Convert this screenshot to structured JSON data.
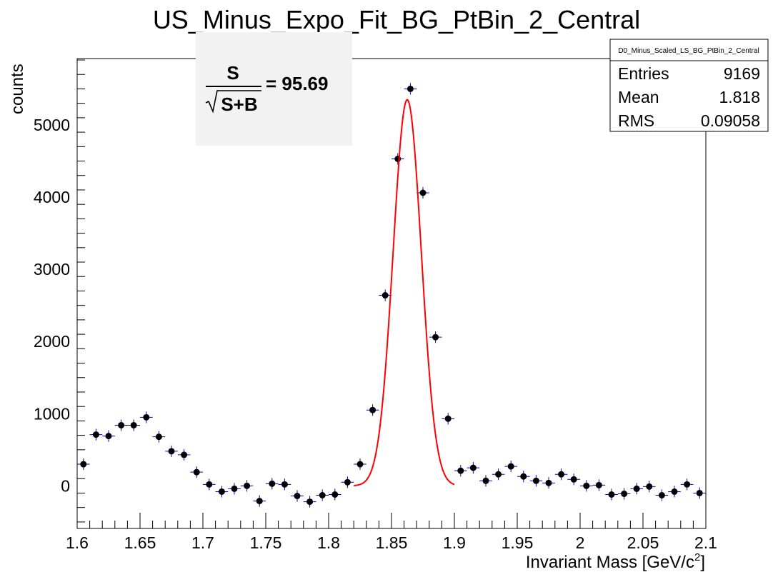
{
  "chart_data": {
    "type": "scatter",
    "title": "US_Minus_Expo_Fit_BG_PtBin_2_Central",
    "xlabel": "Invariant Mass [GeV/c",
    "xlabel_sup": "2",
    "xlabel_end": "]",
    "ylabel": "counts",
    "xlim": [
      1.6,
      2.1
    ],
    "ylim": [
      -590,
      5920
    ],
    "x_ticks": [
      "1.6",
      "1.65",
      "1.7",
      "1.75",
      "1.8",
      "1.85",
      "1.9",
      "1.95",
      "2",
      "2.05",
      "2.1"
    ],
    "y_ticks": [
      "0",
      "1000",
      "2000",
      "3000",
      "4000",
      "5000"
    ],
    "series": [
      {
        "x": [
          1.605,
          1.615,
          1.625,
          1.635,
          1.645,
          1.655,
          1.665,
          1.675,
          1.685,
          1.695,
          1.705,
          1.715,
          1.725,
          1.735,
          1.745,
          1.755,
          1.765,
          1.775,
          1.785,
          1.795,
          1.805,
          1.815,
          1.825,
          1.835,
          1.845,
          1.855,
          1.865,
          1.875,
          1.885,
          1.895,
          1.905,
          1.915,
          1.925,
          1.935,
          1.945,
          1.955,
          1.965,
          1.975,
          1.985,
          1.995,
          2.005,
          2.015,
          2.025,
          2.035,
          2.045,
          2.055,
          2.065,
          2.075,
          2.085,
          2.095
        ],
        "y": [
          300,
          710,
          690,
          840,
          840,
          950,
          680,
          480,
          430,
          190,
          20,
          -80,
          -40,
          0,
          -210,
          30,
          20,
          -140,
          -220,
          -130,
          -120,
          50,
          300,
          1050,
          2640,
          4530,
          5500,
          4060,
          2060,
          930,
          210,
          250,
          70,
          160,
          270,
          130,
          70,
          40,
          160,
          90,
          0,
          10,
          -120,
          -110,
          -40,
          -10,
          -130,
          -80,
          20,
          -100
        ],
        "yerr": [
          80,
          80,
          80,
          80,
          80,
          80,
          80,
          80,
          80,
          80,
          80,
          80,
          80,
          80,
          80,
          80,
          80,
          80,
          80,
          80,
          80,
          80,
          80,
          80,
          80,
          80,
          80,
          80,
          80,
          80,
          80,
          80,
          80,
          80,
          80,
          80,
          80,
          80,
          80,
          80,
          80,
          80,
          80,
          80,
          80,
          80,
          80,
          80,
          80,
          80
        ]
      }
    ],
    "fit": {
      "color": "#ff0000",
      "x_range": [
        1.82,
        1.9
      ],
      "amplitude": 5350,
      "mean": 1.8625,
      "sigma": 0.0112,
      "offset": 0
    },
    "stats": {
      "title": "D0_Minus_Scaled_LS_BG_PtBin_2_Central",
      "rows": [
        {
          "label": "Entries",
          "value": "9169"
        },
        {
          "label": "Mean",
          "value": "1.818"
        },
        {
          "label": "RMS",
          "value": "0.09058"
        }
      ]
    },
    "significance": {
      "numerator": "S",
      "denominator": "S+B",
      "value": "= 95.69"
    },
    "marker_color": "#000000",
    "error_color": "#0000cc"
  }
}
